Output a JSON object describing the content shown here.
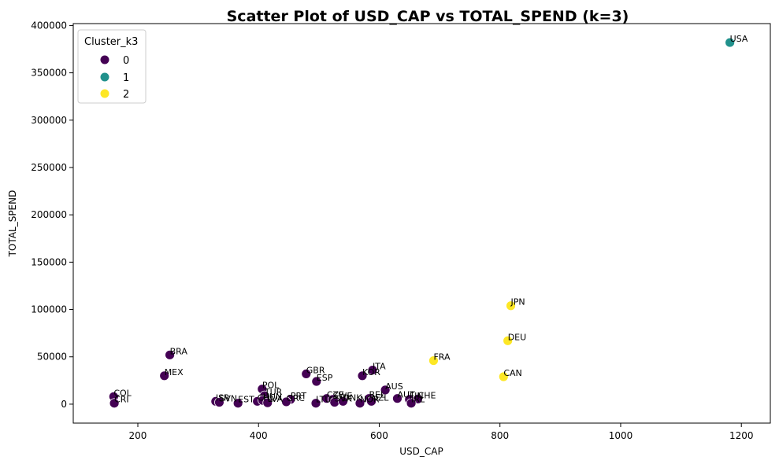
{
  "chart_data": {
    "type": "scatter",
    "title": "Scatter Plot of USD_CAP vs TOTAL_SPEND (k=3)",
    "xlabel": "USD_CAP",
    "ylabel": "TOTAL_SPEND",
    "xlim": [
      93,
      1248
    ],
    "ylim": [
      -20000,
      402000
    ],
    "xticks": [
      200,
      400,
      600,
      800,
      1000,
      1200
    ],
    "yticks": [
      0,
      50000,
      100000,
      150000,
      200000,
      250000,
      300000,
      350000,
      400000
    ],
    "grid": false,
    "legend": {
      "title": "Cluster_k3",
      "placement": "top-left",
      "entries": [
        {
          "label": "0",
          "color": "#440154"
        },
        {
          "label": "1",
          "color": "#21918c"
        },
        {
          "label": "2",
          "color": "#fde725"
        }
      ]
    },
    "points": [
      {
        "label": "USA",
        "x": 1181,
        "y": 382000,
        "cluster": 1
      },
      {
        "label": "JPN",
        "x": 818,
        "y": 104000,
        "cluster": 2
      },
      {
        "label": "DEU",
        "x": 813,
        "y": 67000,
        "cluster": 2
      },
      {
        "label": "FRA",
        "x": 690,
        "y": 46000,
        "cluster": 2
      },
      {
        "label": "CAN",
        "x": 806,
        "y": 29000,
        "cluster": 2
      },
      {
        "label": "BRA",
        "x": 253,
        "y": 52000,
        "cluster": 0
      },
      {
        "label": "MEX",
        "x": 244,
        "y": 30000,
        "cluster": 0
      },
      {
        "label": "GBR",
        "x": 479,
        "y": 32000,
        "cluster": 0
      },
      {
        "label": "ESP",
        "x": 496,
        "y": 24000,
        "cluster": 0
      },
      {
        "label": "ITA",
        "x": 589,
        "y": 36000,
        "cluster": 0
      },
      {
        "label": "KOR",
        "x": 572,
        "y": 30000,
        "cluster": 0
      },
      {
        "label": "AUS",
        "x": 610,
        "y": 15000,
        "cluster": 0
      },
      {
        "label": "POL",
        "x": 406,
        "y": 16000,
        "cluster": 0
      },
      {
        "label": "COL",
        "x": 160,
        "y": 8000,
        "cluster": 0
      },
      {
        "label": "CRI",
        "x": 161,
        "y": 1000,
        "cluster": 0
      },
      {
        "label": "ISR",
        "x": 329,
        "y": 3000,
        "cluster": 0
      },
      {
        "label": "SVN",
        "x": 335,
        "y": 2000,
        "cluster": 0
      },
      {
        "label": "EST",
        "x": 366,
        "y": 1000,
        "cluster": 0
      },
      {
        "label": "TUR",
        "x": 410,
        "y": 9000,
        "cluster": 0
      },
      {
        "label": "CHL",
        "x": 398,
        "y": 3000,
        "cluster": 0
      },
      {
        "label": "HUN",
        "x": 407,
        "y": 4000,
        "cluster": 0
      },
      {
        "label": "LVA",
        "x": 415,
        "y": 1500,
        "cluster": 0
      },
      {
        "label": "PRT",
        "x": 453,
        "y": 5000,
        "cluster": 0
      },
      {
        "label": "GRC",
        "x": 446,
        "y": 2500,
        "cluster": 0
      },
      {
        "label": "CZE",
        "x": 513,
        "y": 6000,
        "cluster": 0
      },
      {
        "label": "SWE",
        "x": 523,
        "y": 5000,
        "cluster": 0
      },
      {
        "label": "LTU",
        "x": 495,
        "y": 1000,
        "cluster": 0
      },
      {
        "label": "SVK",
        "x": 526,
        "y": 2000,
        "cluster": 0
      },
      {
        "label": "DNK",
        "x": 540,
        "y": 3000,
        "cluster": 0
      },
      {
        "label": "NOR",
        "x": 568,
        "y": 1000,
        "cluster": 0
      },
      {
        "label": "BEL",
        "x": 583,
        "y": 6000,
        "cluster": 0
      },
      {
        "label": "NZL",
        "x": 587,
        "y": 3000,
        "cluster": 0
      },
      {
        "label": "AUT",
        "x": 630,
        "y": 6000,
        "cluster": 0
      },
      {
        "label": "FIN",
        "x": 650,
        "y": 5000,
        "cluster": 0
      },
      {
        "label": "CHE",
        "x": 664,
        "y": 5500,
        "cluster": 0
      },
      {
        "label": "IRL",
        "x": 653,
        "y": 1000,
        "cluster": 0
      }
    ]
  }
}
